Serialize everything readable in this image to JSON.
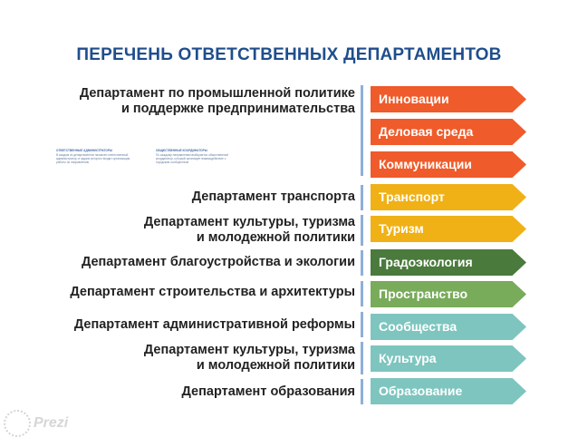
{
  "title": "ПЕРЕЧЕНЬ ОТВЕТСТВЕННЫХ ДЕПАРТАМЕНТОВ",
  "departments": [
    {
      "line1": "Департамент по промышленной политике",
      "line2": "и поддержке предпринимательства"
    },
    {
      "line1": "Департамент транспорта"
    },
    {
      "line1": "Департамент культуры, туризма",
      "line2": "и молодежной политики"
    },
    {
      "line1": "Департамент благоустройства и экологии"
    },
    {
      "line1": "Департамент строительства и архитектуры"
    },
    {
      "line1": "Департамент административной реформы"
    },
    {
      "line1": "Департамент культуры, туризма",
      "line2": "и молодежной политики"
    },
    {
      "line1": "Департамент образования"
    }
  ],
  "directions": [
    {
      "label": "Инновации",
      "color": "#ef5b2a"
    },
    {
      "label": "Деловая среда",
      "color": "#ef5b2a"
    },
    {
      "label": "Коммуникации",
      "color": "#ef5b2a"
    },
    {
      "label": "Транспорт",
      "color": "#f0b116"
    },
    {
      "label": "Туризм",
      "color": "#f0b116"
    },
    {
      "label": "Градоэкология",
      "color": "#4a7a3c"
    },
    {
      "label": "Пространство",
      "color": "#78ab5a"
    },
    {
      "label": "Сообщества",
      "color": "#7ec5bf"
    },
    {
      "label": "Культура",
      "color": "#7ec5bf"
    },
    {
      "label": "Образование",
      "color": "#7ec5bf"
    }
  ],
  "notes": [
    {
      "heading": "ОТВЕТСТВЕННЫЕ АДМИНИСТРАТОРЫ",
      "text": "В каждом из департаментов назначен ответственный администратор, в задачи которого входит организация работы по направлению"
    },
    {
      "heading": "ОБЩЕСТВЕННЫЕ КООРДИНАТОРЫ",
      "text": "По каждому направлению выбирается общественный координатор, который организует взаимодействие с городским сообществом"
    }
  ],
  "logo": {
    "text": "Prezi"
  }
}
